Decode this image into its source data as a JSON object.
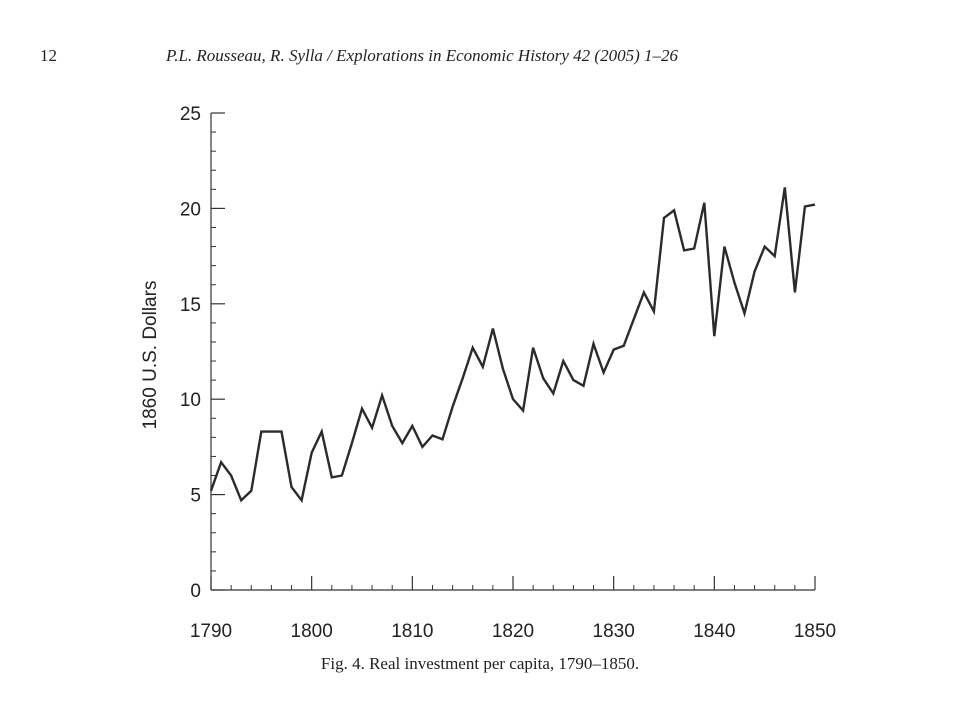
{
  "header": {
    "page_number": "12",
    "running_title": "P.L. Rousseau, R. Sylla / Explorations in Economic History 42 (2005) 1–26"
  },
  "caption": "Fig. 4. Real investment per capita, 1790–1850.",
  "colors": {
    "line": "#2b2b2b",
    "axis": "#333333"
  },
  "chart_data": {
    "type": "line",
    "title": "",
    "xlabel": "",
    "ylabel": "1860 U.S. Dollars",
    "xlim": [
      1790,
      1850
    ],
    "ylim": [
      0,
      25
    ],
    "x_ticks": [
      1790,
      1800,
      1810,
      1820,
      1830,
      1840,
      1850
    ],
    "y_ticks": [
      0,
      5,
      10,
      15,
      20,
      25
    ],
    "grid": false,
    "series": [
      {
        "x": [
          1790,
          1791,
          1792,
          1793,
          1794,
          1795,
          1796,
          1797,
          1798,
          1799,
          1800,
          1801,
          1802,
          1803,
          1804,
          1805,
          1806,
          1807,
          1808,
          1809,
          1810,
          1811,
          1812,
          1813,
          1814,
          1815,
          1816,
          1817,
          1818,
          1819,
          1820,
          1821,
          1822,
          1823,
          1824,
          1825,
          1826,
          1827,
          1828,
          1829,
          1830,
          1831,
          1832,
          1833,
          1834,
          1835,
          1836,
          1837,
          1838,
          1839,
          1840,
          1841,
          1842,
          1843,
          1844,
          1845,
          1846,
          1847,
          1848,
          1849,
          1850
        ],
        "values": [
          5.2,
          6.7,
          6.0,
          4.7,
          5.2,
          8.3,
          8.3,
          8.3,
          5.4,
          4.7,
          7.2,
          8.3,
          5.9,
          6.0,
          7.7,
          9.5,
          8.5,
          10.2,
          8.6,
          7.7,
          8.6,
          7.5,
          8.1,
          7.9,
          9.6,
          11.1,
          12.7,
          11.7,
          13.7,
          11.6,
          10.0,
          9.4,
          12.7,
          11.1,
          10.3,
          12.0,
          11.0,
          10.7,
          12.9,
          11.4,
          12.6,
          12.8,
          14.2,
          15.6,
          14.6,
          19.5,
          19.9,
          17.8,
          17.9,
          20.3,
          13.3,
          18.0,
          16.1,
          14.5,
          16.7,
          18.0,
          17.5,
          21.1,
          15.6,
          20.1,
          20.2
        ]
      }
    ]
  }
}
